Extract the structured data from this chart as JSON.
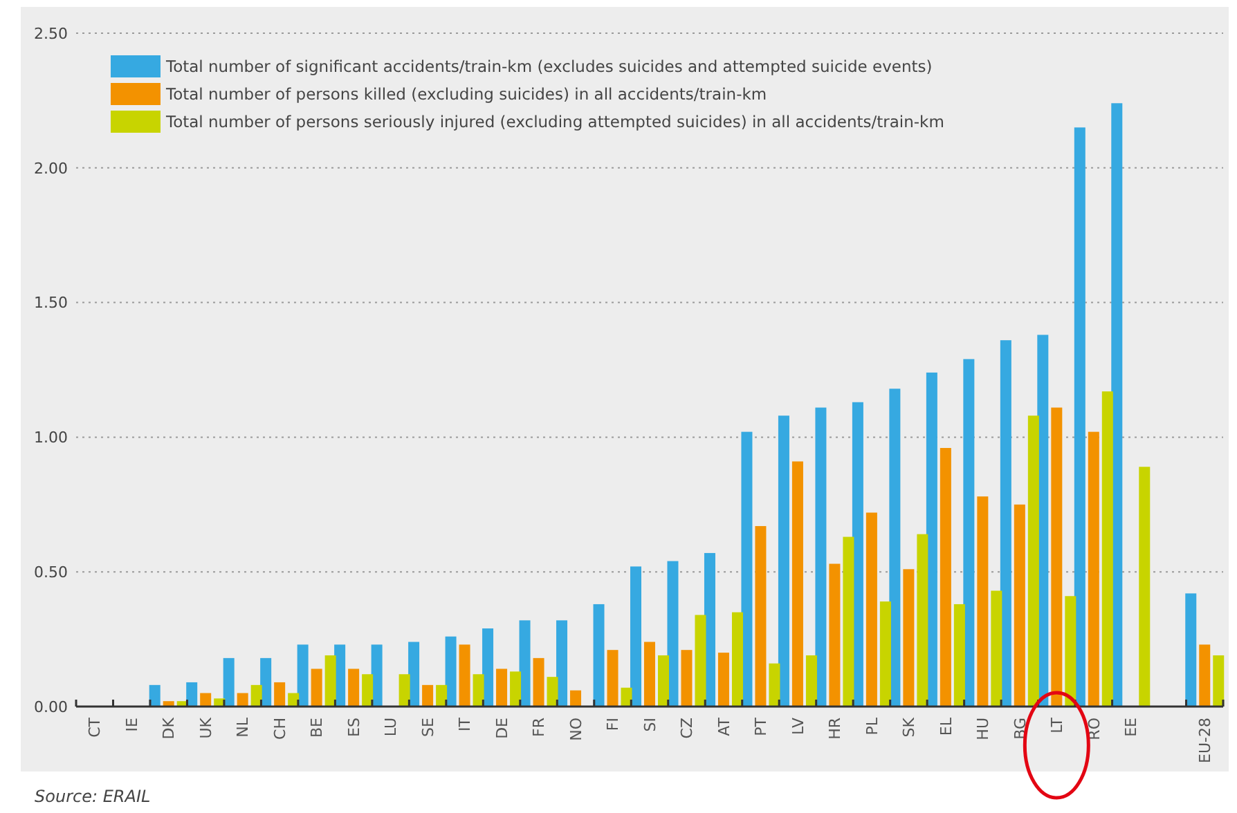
{
  "chart_data": {
    "type": "bar",
    "categories": [
      "CT",
      "IE",
      "DK",
      "UK",
      "NL",
      "CH",
      "BE",
      "ES",
      "LU",
      "SE",
      "IT",
      "DE",
      "FR",
      "NO",
      "FI",
      "SI",
      "CZ",
      "AT",
      "PT",
      "LV",
      "HR",
      "PL",
      "SK",
      "EL",
      "HU",
      "BG",
      "LT",
      "RO",
      "EE",
      null,
      "EU-28"
    ],
    "series": [
      {
        "name": "Total number of significant accidents/train-km (excludes suicides and attempted suicide events)",
        "color": "#36a9e1",
        "values": [
          null,
          null,
          0.08,
          0.09,
          0.18,
          0.18,
          0.23,
          0.23,
          0.23,
          0.24,
          0.26,
          0.29,
          0.32,
          0.32,
          0.38,
          0.52,
          0.54,
          0.57,
          1.02,
          1.08,
          1.11,
          1.13,
          1.18,
          1.24,
          1.29,
          1.36,
          1.38,
          2.15,
          2.24,
          null,
          0.42
        ]
      },
      {
        "name": "Total number of persons killed (excluding suicides) in all accidents/train-km",
        "color": "#f39200",
        "values": [
          null,
          null,
          0.02,
          0.05,
          0.05,
          0.09,
          0.14,
          0.14,
          null,
          0.08,
          0.23,
          0.14,
          0.18,
          0.06,
          0.21,
          0.24,
          0.21,
          0.2,
          0.67,
          0.91,
          0.53,
          0.72,
          0.51,
          0.96,
          0.78,
          0.75,
          1.11,
          1.02,
          null,
          null,
          0.23
        ]
      },
      {
        "name": "Total number of persons seriously injured (excluding attempted suicides) in all accidents/train-km",
        "color": "#c8d400",
        "values": [
          null,
          null,
          0.02,
          0.03,
          0.08,
          0.05,
          0.19,
          0.12,
          0.12,
          0.08,
          0.12,
          0.13,
          0.11,
          null,
          0.07,
          0.19,
          0.34,
          0.35,
          0.16,
          0.19,
          0.63,
          0.39,
          0.64,
          0.38,
          0.43,
          1.08,
          0.41,
          1.17,
          0.89,
          null,
          0.19
        ]
      }
    ],
    "ylim": [
      0,
      2.5
    ],
    "yticks": [
      {
        "value": 0,
        "label": "0.00"
      },
      {
        "value": 0.5,
        "label": "0.50"
      },
      {
        "value": 1,
        "label": "1.00"
      },
      {
        "value": 1.5,
        "label": "1.50"
      },
      {
        "value": 2,
        "label": "2.00"
      },
      {
        "value": 2.5,
        "label": "2.50"
      }
    ],
    "grid": "y",
    "legend": "top left",
    "annotations": [
      "Source: ERAIL"
    ]
  }
}
